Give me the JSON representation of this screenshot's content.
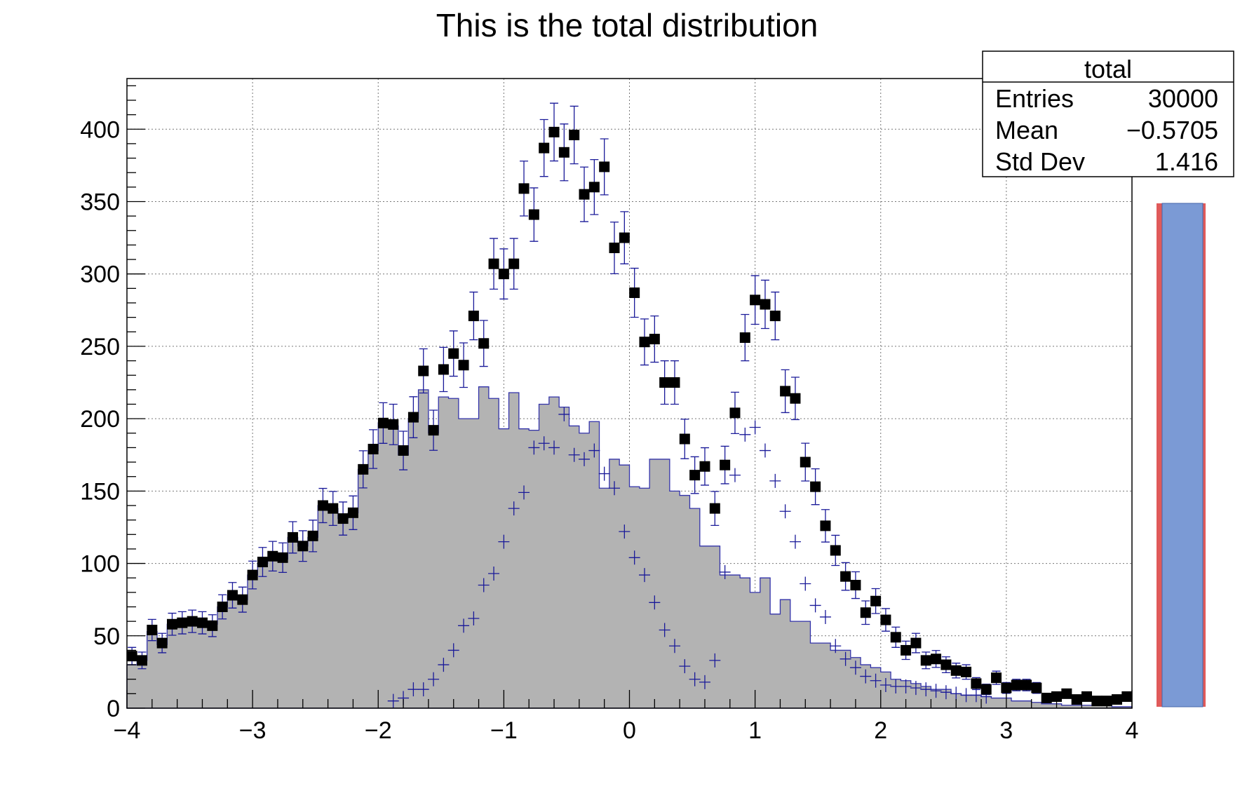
{
  "chart_data": {
    "type": "histogram",
    "title": "This is the total distribution",
    "xlabel": "",
    "ylabel": "",
    "xlim": [
      -4,
      4
    ],
    "ylim": [
      0,
      435
    ],
    "grid": true,
    "x_ticks": [
      "−4",
      "−3",
      "−2",
      "−1",
      "0",
      "1",
      "2",
      "3",
      "4"
    ],
    "x_tick_values": [
      -4,
      -3,
      -2,
      -1,
      0,
      1,
      2,
      3,
      4
    ],
    "y_ticks": [
      "0",
      "50",
      "100",
      "150",
      "200",
      "250",
      "300",
      "350",
      "400"
    ],
    "y_tick_values": [
      0,
      50,
      100,
      150,
      200,
      250,
      300,
      350,
      400
    ],
    "stats_box": {
      "title": "total",
      "rows": [
        {
          "label": "Entries",
          "value": "30000"
        },
        {
          "label": "Mean",
          "value": "−0.5705"
        },
        {
          "label": "Std Dev",
          "value": "1.416"
        }
      ]
    },
    "bin_width": 0.08,
    "series": [
      {
        "style": "filled-step",
        "color": "#b3b3b3",
        "line_color": "#3333aa",
        "bin_centers": [
          -3.96,
          -3.88,
          -3.8,
          -3.72,
          -3.64,
          -3.56,
          -3.48,
          -3.4,
          -3.32,
          -3.24,
          -3.16,
          -3.08,
          -3.0,
          -2.92,
          -2.84,
          -2.76,
          -2.68,
          -2.6,
          -2.52,
          -2.44,
          -2.36,
          -2.28,
          -2.2,
          -2.12,
          -2.04,
          -1.96,
          -1.88,
          -1.8,
          -1.72,
          -1.64,
          -1.56,
          -1.48,
          -1.4,
          -1.32,
          -1.24,
          -1.16,
          -1.08,
          -1.0,
          -0.92,
          -0.84,
          -0.76,
          -0.68,
          -0.6,
          -0.52,
          -0.44,
          -0.36,
          -0.28,
          -0.2,
          -0.12,
          -0.04,
          0.04,
          0.12,
          0.2,
          0.28,
          0.36,
          0.44,
          0.52,
          0.6,
          0.68,
          0.76,
          0.84,
          0.92,
          1.0,
          1.08,
          1.16,
          1.24,
          1.32,
          1.4,
          1.48,
          1.56,
          1.64,
          1.72,
          1.8,
          1.88,
          1.96,
          2.04,
          2.12,
          2.2,
          2.28,
          2.36,
          2.44,
          2.52,
          2.6,
          2.68,
          2.76,
          2.84,
          2.92,
          3.0,
          3.08,
          3.16,
          3.24,
          3.32,
          3.4,
          3.48,
          3.56,
          3.64,
          3.72,
          3.8,
          3.88,
          3.96
        ],
        "values": [
          30,
          33,
          53,
          44,
          58,
          59,
          59,
          60,
          58,
          70,
          78,
          75,
          92,
          100,
          103,
          103,
          118,
          112,
          118,
          140,
          138,
          131,
          135,
          165,
          178,
          197,
          195,
          175,
          200,
          220,
          190,
          215,
          214,
          200,
          200,
          222,
          214,
          193,
          218,
          193,
          192,
          210,
          215,
          208,
          195,
          190,
          198,
          152,
          172,
          168,
          153,
          152,
          172,
          172,
          150,
          147,
          138,
          112,
          112,
          92,
          92,
          90,
          80,
          90,
          65,
          75,
          60,
          60,
          45,
          45,
          40,
          40,
          35,
          30,
          28,
          25,
          20,
          19,
          17,
          15,
          13,
          13,
          10,
          9,
          9,
          8,
          7,
          7,
          5,
          5,
          4,
          3,
          3,
          2,
          2,
          2,
          2,
          2,
          1,
          1
        ]
      },
      {
        "style": "cross-markers",
        "color": "#1a1a99",
        "x": [
          -1.88,
          -1.8,
          -1.72,
          -1.64,
          -1.56,
          -1.48,
          -1.4,
          -1.32,
          -1.24,
          -1.16,
          -1.08,
          -1.0,
          -0.92,
          -0.84,
          -0.76,
          -0.68,
          -0.6,
          -0.52,
          -0.44,
          -0.36,
          -0.28,
          -0.2,
          -0.12,
          -0.04,
          0.04,
          0.12,
          0.2,
          0.28,
          0.36,
          0.44,
          0.52,
          0.6,
          0.68,
          0.76,
          0.84,
          0.92,
          1.0,
          1.08,
          1.16,
          1.24,
          1.32,
          1.4,
          1.48,
          1.56,
          1.64,
          1.72,
          1.8,
          1.88,
          1.96,
          2.04,
          2.12,
          2.2,
          2.28,
          2.36,
          2.44,
          2.52,
          2.6,
          2.68,
          2.76,
          2.84
        ],
        "y": [
          5,
          7,
          13,
          13,
          20,
          30,
          40,
          57,
          62,
          85,
          93,
          115,
          138,
          149,
          180,
          183,
          180,
          203,
          175,
          172,
          178,
          162,
          152,
          122,
          104,
          92,
          73,
          54,
          43,
          29,
          20,
          18,
          33,
          94,
          161,
          189,
          194,
          178,
          157,
          136,
          115,
          86,
          71,
          63,
          43,
          34,
          28,
          22,
          19,
          16,
          15,
          15,
          14,
          13,
          12,
          11,
          10,
          9,
          9,
          8
        ]
      },
      {
        "style": "square-markers-errorbars",
        "color": "#000000",
        "errorbar_color": "#1a1a99",
        "x": [
          -3.96,
          -3.88,
          -3.8,
          -3.72,
          -3.64,
          -3.56,
          -3.48,
          -3.4,
          -3.32,
          -3.24,
          -3.16,
          -3.08,
          -3.0,
          -2.92,
          -2.84,
          -2.76,
          -2.68,
          -2.6,
          -2.52,
          -2.44,
          -2.36,
          -2.28,
          -2.2,
          -2.12,
          -2.04,
          -1.96,
          -1.88,
          -1.8,
          -1.72,
          -1.64,
          -1.56,
          -1.48,
          -1.4,
          -1.32,
          -1.24,
          -1.16,
          -1.08,
          -1.0,
          -0.92,
          -0.84,
          -0.76,
          -0.68,
          -0.6,
          -0.52,
          -0.44,
          -0.36,
          -0.28,
          -0.2,
          -0.12,
          -0.04,
          0.04,
          0.12,
          0.2,
          0.28,
          0.36,
          0.44,
          0.52,
          0.6,
          0.68,
          0.76,
          0.84,
          0.92,
          1.0,
          1.08,
          1.16,
          1.24,
          1.32,
          1.4,
          1.48,
          1.56,
          1.64,
          1.72,
          1.8,
          1.88,
          1.96,
          2.04,
          2.12,
          2.2,
          2.28,
          2.36,
          2.44,
          2.52,
          2.6,
          2.68,
          2.76,
          2.84,
          2.92,
          3.0,
          3.08,
          3.16,
          3.24,
          3.32,
          3.4,
          3.48,
          3.56,
          3.64,
          3.72,
          3.8,
          3.88,
          3.96
        ],
        "y": [
          36,
          33,
          54,
          45,
          58,
          59,
          60,
          59,
          57,
          70,
          78,
          75,
          92,
          101,
          105,
          104,
          118,
          112,
          119,
          140,
          138,
          131,
          135,
          165,
          179,
          197,
          196,
          178,
          201,
          233,
          192,
          234,
          245,
          237,
          271,
          252,
          307,
          300,
          307,
          359,
          341,
          387,
          398,
          384,
          396,
          355,
          360,
          374,
          318,
          325,
          287,
          253,
          255,
          225,
          225,
          186,
          161,
          167,
          138,
          168,
          204,
          256,
          282,
          279,
          271,
          219,
          214,
          170,
          153,
          126,
          109,
          91,
          85,
          66,
          74,
          61,
          49,
          40,
          45,
          33,
          34,
          30,
          26,
          25,
          17,
          13,
          21,
          14,
          16,
          16,
          14,
          7,
          8,
          10,
          6,
          8,
          5,
          5,
          6,
          8
        ]
      }
    ],
    "palette_bar": {
      "fill": "#7b9ad5",
      "border": "#e05a5a"
    }
  }
}
